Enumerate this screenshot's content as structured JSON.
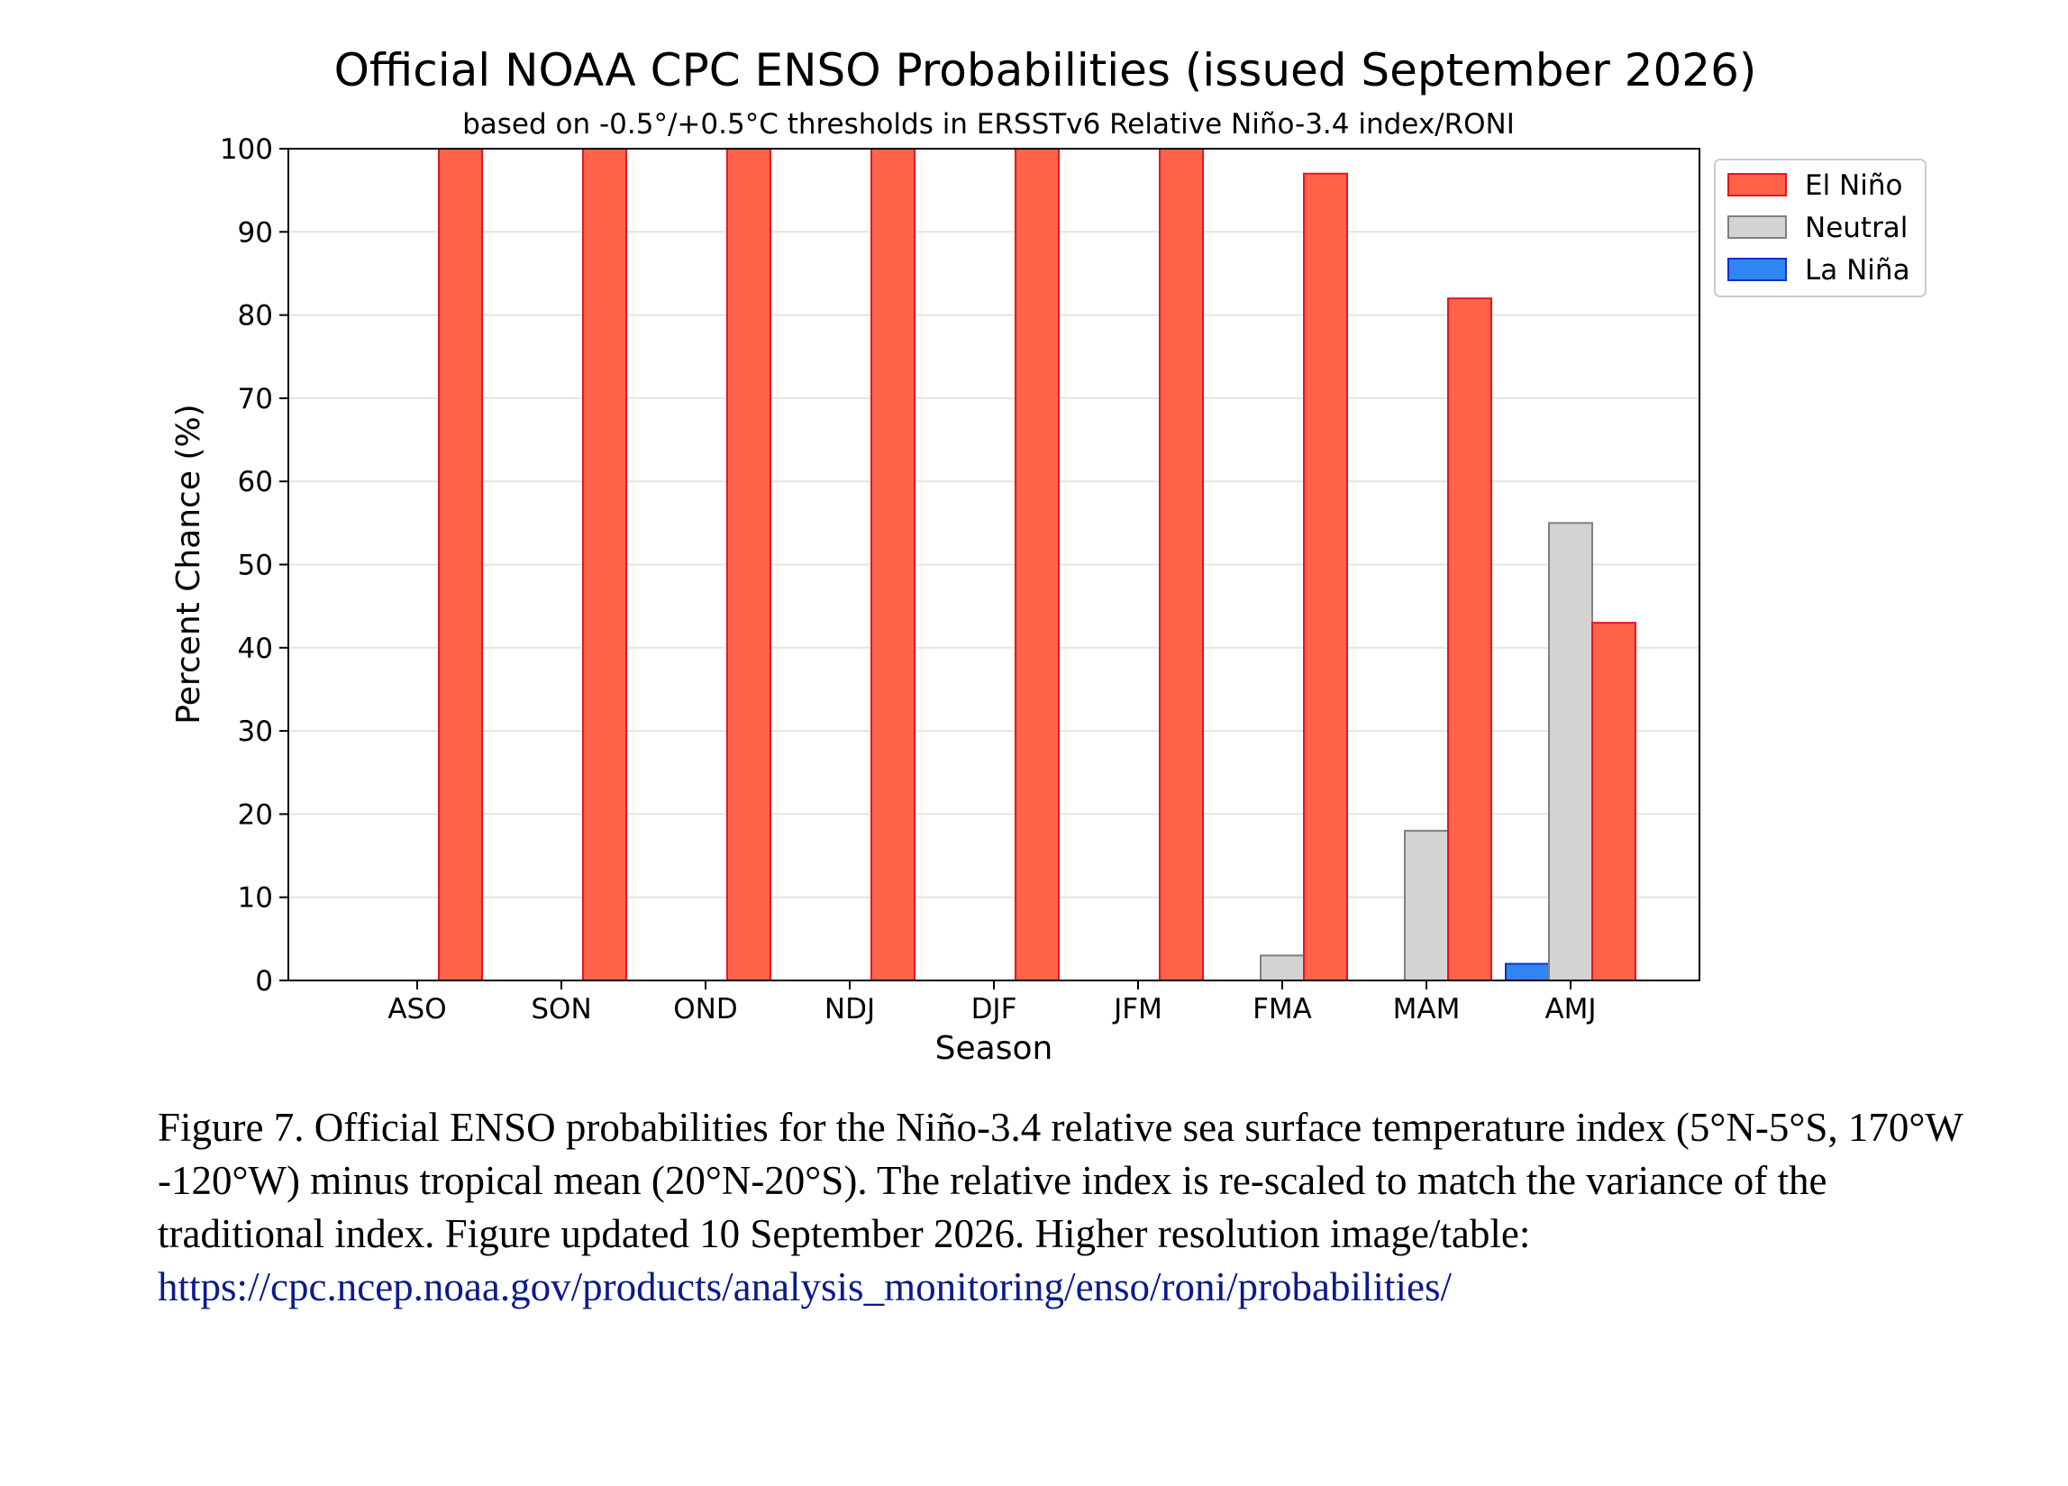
{
  "chart_data": {
    "type": "bar",
    "title": "Official NOAA CPC ENSO Probabilities (issued September 2026)",
    "subtitle": "based on -0.5°/+0.5°C thresholds in ERSSTv6 Relative Niño-3.4 index/RONI",
    "xlabel": "Season",
    "ylabel": "Percent Chance (%)",
    "ylim": [
      0,
      100
    ],
    "yticks": [
      0,
      10,
      20,
      30,
      40,
      50,
      60,
      70,
      80,
      90,
      100
    ],
    "grid": true,
    "legend_position": "upper-right outside",
    "categories": [
      "ASO",
      "SON",
      "OND",
      "NDJ",
      "DJF",
      "JFM",
      "FMA",
      "MAM",
      "AMJ"
    ],
    "series": [
      {
        "name": "La Niña",
        "color": "#2f86f0",
        "edge": "#1030d0",
        "values": [
          0,
          0,
          0,
          0,
          0,
          0,
          0,
          0,
          2
        ]
      },
      {
        "name": "Neutral",
        "color": "#d3d3d3",
        "edge": "#808080",
        "values": [
          0,
          0,
          0,
          0,
          0,
          0,
          3,
          18,
          55
        ]
      },
      {
        "name": "El Niño",
        "color": "#ff634a",
        "edge": "#e8141e",
        "values": [
          100,
          100,
          100,
          100,
          100,
          100,
          97,
          82,
          43
        ]
      }
    ],
    "legend_order": [
      "El Niño",
      "Neutral",
      "La Niña"
    ]
  },
  "caption": {
    "text": "Figure 7. Official ENSO probabilities for the Niño-3.4 relative sea surface temperature index (5°N-5°S, 170°W -120°W) minus tropical mean (20°N-20°S). The relative index is re-scaled to match the variance of the traditional index. Figure updated 10 September 2026. Higher resolution image/table:",
    "link": "https://cpc.ncep.noaa.gov/products/analysis_monitoring/enso/roni/probabilities/"
  }
}
